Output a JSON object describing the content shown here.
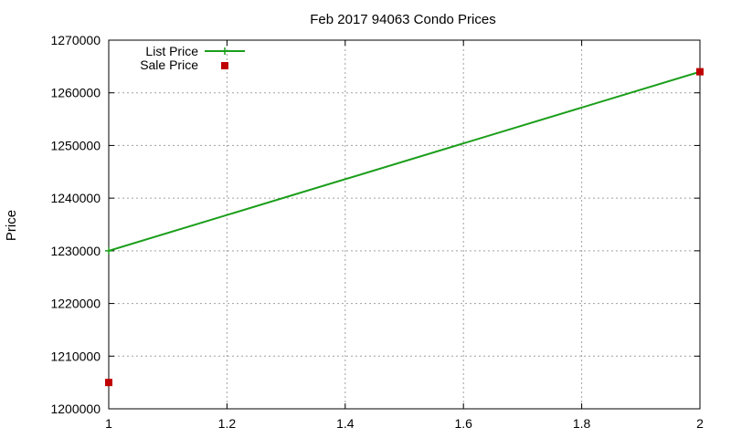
{
  "chart_data": {
    "type": "line",
    "title": "Feb 2017 94063 Condo Prices",
    "xlabel": "",
    "ylabel": "Price",
    "xlim": [
      1,
      2
    ],
    "ylim": [
      1200000,
      1270000
    ],
    "x_ticks": [
      1,
      1.2,
      1.4,
      1.6,
      1.8,
      2
    ],
    "x_tick_labels": [
      "1",
      "1.2",
      "1.4",
      "1.6",
      "1.8",
      "2"
    ],
    "y_ticks": [
      1200000,
      1210000,
      1220000,
      1230000,
      1240000,
      1250000,
      1260000,
      1270000
    ],
    "y_tick_labels": [
      "1200000",
      "1210000",
      "1220000",
      "1230000",
      "1240000",
      "1250000",
      "1260000",
      "1270000"
    ],
    "grid": true,
    "legend": "top-left",
    "series": [
      {
        "name": "List Price",
        "style": "linespoints",
        "color": "#1a9e1a",
        "x": [
          1,
          2
        ],
        "y": [
          1230000,
          1264000
        ]
      },
      {
        "name": "Sale Price",
        "style": "points",
        "color": "#c00000",
        "x": [
          1,
          2
        ],
        "y": [
          1205000,
          1264000
        ]
      }
    ]
  }
}
